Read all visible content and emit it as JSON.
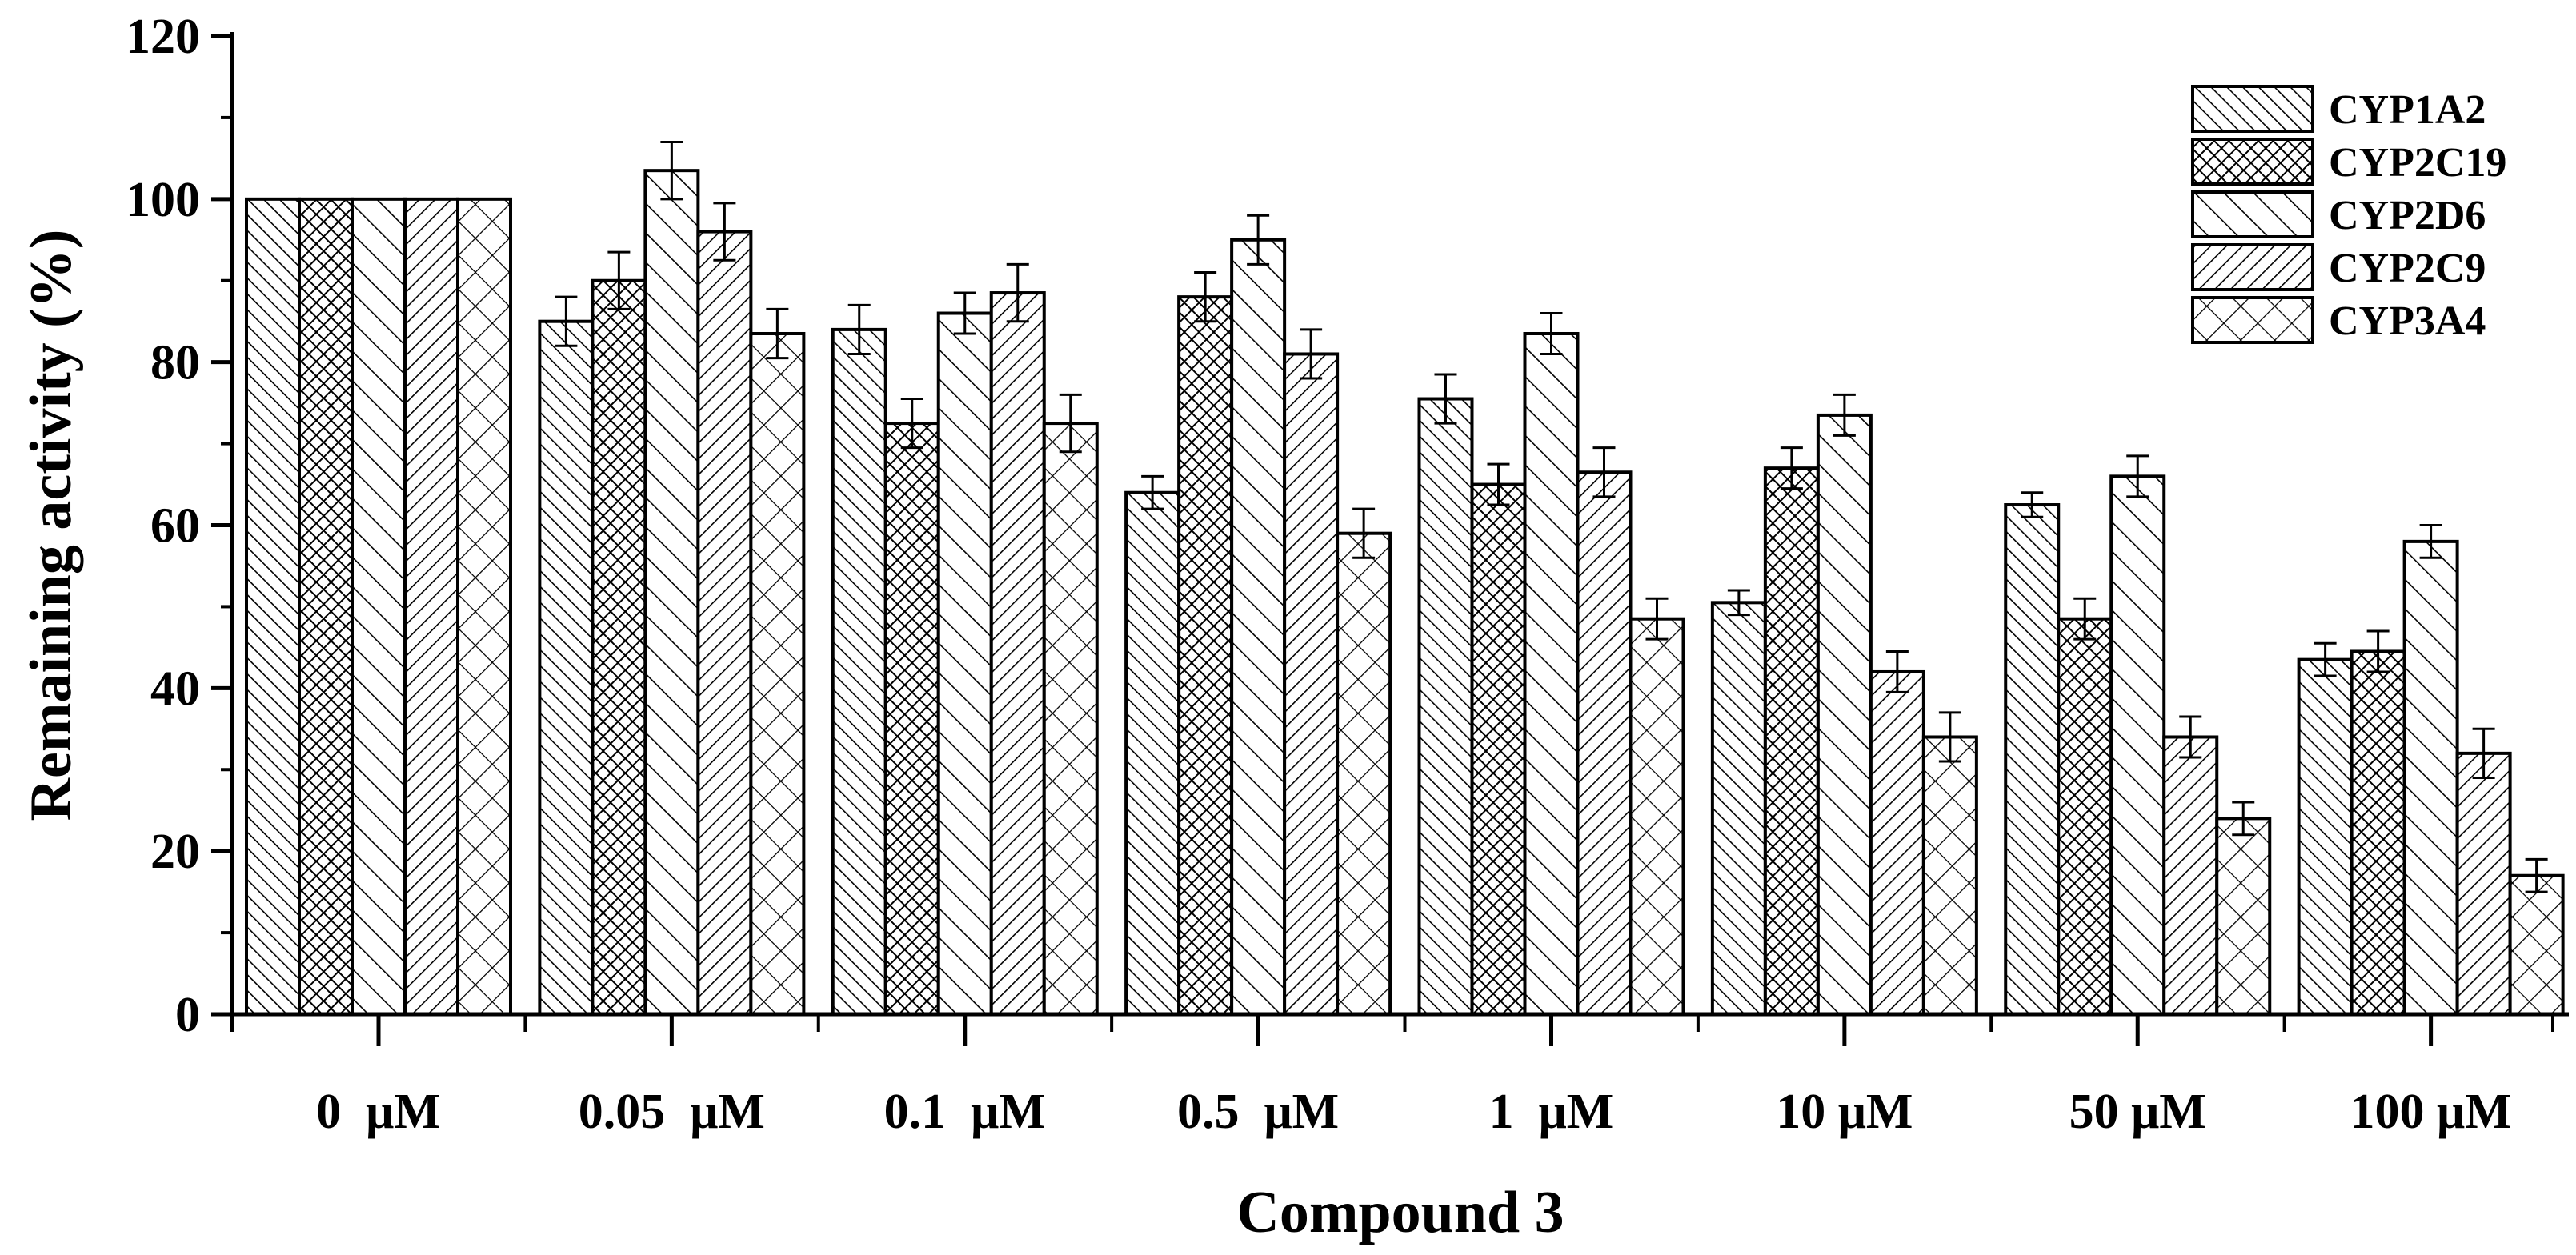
{
  "chart_data": {
    "type": "bar",
    "title": "",
    "xlabel": "Compound 3",
    "ylabel": "Remaining activity (%)",
    "ylim": [
      0,
      120
    ],
    "yticks": [
      0,
      20,
      40,
      60,
      80,
      100,
      120
    ],
    "grid": false,
    "legend_position": "top-right",
    "categories": [
      "0  μM",
      "0.05  μM",
      "0.1  μM",
      "0.5  μM",
      "1  μM",
      "10 μM",
      "50 μM",
      "100 μM"
    ],
    "series": [
      {
        "name": "CYP1A2",
        "pattern": "hatch-45",
        "values": [
          100,
          85,
          84,
          64,
          75.5,
          50.5,
          62.5,
          43.5
        ],
        "errors": [
          0,
          3,
          3,
          2,
          3,
          1.5,
          1.5,
          2
        ]
      },
      {
        "name": "CYP2C19",
        "pattern": "crosshatch-fine",
        "values": [
          100,
          90,
          72.5,
          88,
          65,
          67,
          48.5,
          44.5
        ],
        "errors": [
          0,
          3.5,
          3,
          3,
          2.5,
          2.5,
          2.5,
          2.5
        ]
      },
      {
        "name": "CYP2D6",
        "pattern": "hatch-45-wide",
        "values": [
          100,
          103.5,
          86,
          95,
          83.5,
          73.5,
          66,
          58
        ],
        "errors": [
          0,
          3.5,
          2.5,
          3,
          2.5,
          2.5,
          2.5,
          2
        ]
      },
      {
        "name": "CYP2C9",
        "pattern": "hatch-135",
        "values": [
          100,
          96,
          88.5,
          81,
          66.5,
          42,
          34,
          32
        ],
        "errors": [
          0,
          3.5,
          3.5,
          3,
          3,
          2.5,
          2.5,
          3
        ]
      },
      {
        "name": "CYP3A4",
        "pattern": "crosshatch-wide",
        "values": [
          100,
          83.5,
          72.5,
          59,
          48.5,
          34,
          24,
          17
        ],
        "errors": [
          0,
          3,
          3.5,
          3,
          2.5,
          3,
          2,
          2
        ]
      }
    ]
  }
}
